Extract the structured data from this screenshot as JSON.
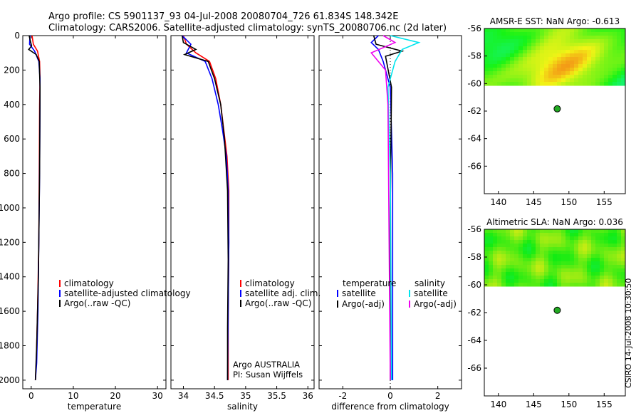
{
  "header": {
    "line1": "Argo profile: CS 5901137_93 04-Jul-2008 20080704_726 61.834S 148.342E",
    "line2": "Climatology: CARS2006. Satellite-adjusted climatology: synTS_20080706.nc (2d later)"
  },
  "stamp": "CSIRO 14-Jul-2008 10:30:50",
  "colors": {
    "climatology": "#ff0000",
    "satellite": "#0000ff",
    "argo": "#000000",
    "sat_salinity": "#00e5ee",
    "argo_salinity": "#ee00ee",
    "marker": "#22aa22"
  },
  "chart_data": [
    {
      "type": "line",
      "id": "temperature",
      "xlabel": "temperature",
      "xlim": [
        -2,
        32
      ],
      "ylim": [
        0,
        2050
      ],
      "xticks": [
        0,
        10,
        20,
        30
      ],
      "yticks": [
        0,
        200,
        400,
        600,
        800,
        1000,
        1200,
        1400,
        1600,
        1800,
        2000
      ],
      "series": [
        {
          "name": "climatology",
          "color": "#ff0000",
          "x": [
            0.2,
            0.5,
            1.5,
            2.0,
            2.1,
            2.0,
            1.9,
            1.8,
            1.5,
            1.2,
            1.0
          ],
          "y": [
            0,
            50,
            90,
            150,
            250,
            400,
            800,
            1200,
            1600,
            1900,
            2000
          ]
        },
        {
          "name": "satellite-adjusted climatology",
          "color": "#0000ff",
          "x": [
            -0.3,
            -0.4,
            0.8,
            1.8,
            2.1,
            2.1,
            2.0,
            1.8,
            1.6,
            1.3,
            1.0
          ],
          "y": [
            0,
            50,
            90,
            150,
            250,
            400,
            800,
            1200,
            1600,
            1900,
            2000
          ]
        },
        {
          "name": "Argo(..raw -QC)",
          "color": "#000000",
          "x": [
            -0.5,
            -0.2,
            0.1,
            -0.6,
            1.2,
            1.9,
            2.1,
            2.0,
            1.7,
            1.3,
            1.0
          ],
          "y": [
            0,
            30,
            60,
            80,
            110,
            150,
            300,
            800,
            1400,
            1800,
            2000
          ]
        }
      ],
      "legend": [
        "climatology",
        "satellite-adjusted climatology",
        "Argo(..raw -QC)"
      ]
    },
    {
      "type": "line",
      "id": "salinity",
      "xlabel": "salinity",
      "xlim": [
        33.8,
        36.1
      ],
      "ylim": [
        0,
        2050
      ],
      "xticks": [
        34,
        34.5,
        35,
        35.5,
        36
      ],
      "xticklabels": [
        "34",
        "34.5",
        "35",
        "35.5",
        "36"
      ],
      "series": [
        {
          "name": "climatology",
          "color": "#ff0000",
          "x": [
            34.0,
            34.05,
            34.2,
            34.42,
            34.52,
            34.6,
            34.65,
            34.7,
            34.73,
            34.73,
            34.72,
            34.72
          ],
          "y": [
            0,
            50,
            100,
            150,
            250,
            400,
            550,
            700,
            900,
            1200,
            1600,
            2000
          ]
        },
        {
          "name": "satellite adj. clim.",
          "color": "#0000ff",
          "x": [
            33.98,
            34.12,
            34.05,
            34.35,
            34.46,
            34.56,
            34.63,
            34.69,
            34.72,
            34.73,
            34.72,
            34.71
          ],
          "y": [
            0,
            50,
            100,
            150,
            250,
            400,
            550,
            700,
            900,
            1200,
            1600,
            2000
          ]
        },
        {
          "name": "Argo(..raw -QC)",
          "color": "#000000",
          "x": [
            33.98,
            34.0,
            34.2,
            34.02,
            34.4,
            34.5,
            34.6,
            34.66,
            34.71,
            34.72,
            34.71,
            34.71
          ],
          "y": [
            0,
            40,
            80,
            110,
            150,
            250,
            400,
            600,
            900,
            1300,
            1700,
            2000
          ]
        }
      ],
      "legend": [
        "climatology",
        "satellite adj. clim.",
        "Argo(..raw -QC)"
      ],
      "annotation": [
        "Argo AUSTRALIA",
        "PI: Susan Wijffels"
      ]
    },
    {
      "type": "line",
      "id": "difference",
      "xlabel": "difference from climatology",
      "xlim": [
        -3,
        3
      ],
      "ylim": [
        0,
        2050
      ],
      "xticks": [
        -2,
        0,
        2
      ],
      "series": [
        {
          "name": "temperature satellite",
          "color": "#0000ff",
          "x": [
            -0.5,
            -0.8,
            -0.5,
            -0.3,
            0.0,
            0.1,
            0.1,
            0.1
          ],
          "y": [
            0,
            40,
            80,
            150,
            300,
            800,
            1500,
            2000
          ]
        },
        {
          "name": "temperature Argo(-adj)",
          "color": "#000000",
          "x": [
            -0.7,
            -0.6,
            0.5,
            -0.2,
            0.05,
            0.0,
            0.0
          ],
          "y": [
            0,
            50,
            90,
            120,
            300,
            1000,
            2000
          ]
        },
        {
          "name": "salinity satellite",
          "color": "#00e5ee",
          "x": [
            0.0,
            1.2,
            0.5,
            0.2,
            -0.1,
            0.0,
            0.05
          ],
          "y": [
            0,
            40,
            80,
            150,
            300,
            800,
            2000
          ]
        },
        {
          "name": "salinity Argo(-adj)",
          "color": "#ee00ee",
          "x": [
            -0.3,
            0.2,
            -0.8,
            -0.2,
            -0.1,
            0.0
          ],
          "y": [
            0,
            40,
            100,
            200,
            400,
            2000
          ]
        }
      ],
      "legend_headers": [
        "temperature",
        "salinity"
      ],
      "legend": [
        "satellite",
        "Argo(-adj)",
        "satellite",
        "Argo(-adj)"
      ]
    },
    {
      "type": "heatmap",
      "id": "sst_map",
      "title": "AMSR-E SST: NaN Argo: -0.613",
      "xlim": [
        138,
        158
      ],
      "ylim": [
        -68,
        -56
      ],
      "xticks": [
        140,
        145,
        150,
        155
      ],
      "yticks": [
        -56,
        -58,
        -60,
        -62,
        -64,
        -66
      ],
      "data_extent_y": [
        -60,
        -56
      ],
      "marker": {
        "lon": 148.342,
        "lat": -61.834
      }
    },
    {
      "type": "heatmap",
      "id": "sla_map",
      "title": "Altimetric SLA: NaN Argo: 0.036",
      "xlim": [
        138,
        158
      ],
      "ylim": [
        -68,
        -56
      ],
      "xticks": [
        140,
        145,
        150,
        155
      ],
      "yticks": [
        -56,
        -58,
        -60,
        -62,
        -64,
        -66
      ],
      "data_extent_y": [
        -60,
        -56
      ],
      "marker": {
        "lon": 148.342,
        "lat": -61.834
      }
    }
  ]
}
